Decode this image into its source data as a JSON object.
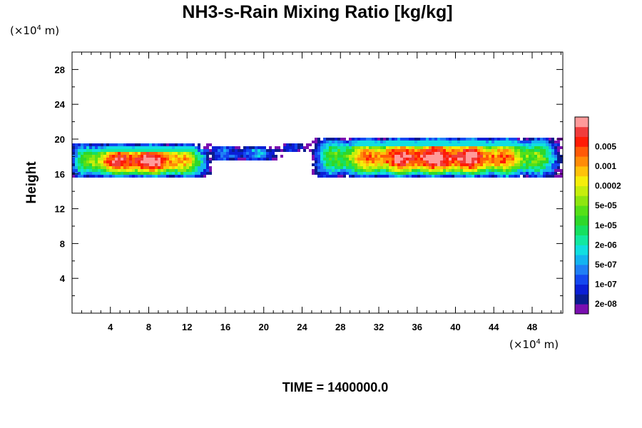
{
  "chart_data": {
    "type": "heatmap",
    "title": "NH3-s-Rain Mixing Ratio [kg/kg]",
    "ylabel": "Height",
    "xlabel": "",
    "x_unit_label": "(×10",
    "x_unit_exp": "4",
    "x_unit_suffix": " m)",
    "y_unit_label": "(×10",
    "y_unit_exp": "4",
    "y_unit_suffix": " m)",
    "time_label": "TIME = 1400000.0",
    "xlim": [
      0,
      51.2
    ],
    "ylim": [
      0,
      30
    ],
    "x_ticks": [
      4,
      8,
      12,
      16,
      20,
      24,
      28,
      32,
      36,
      40,
      44,
      48
    ],
    "x_tick_labels": [
      "4",
      "8",
      "12",
      "16",
      "20",
      "24",
      "28",
      "32",
      "36",
      "40",
      "44",
      "48"
    ],
    "y_ticks": [
      4,
      8,
      12,
      16,
      20,
      24,
      28
    ],
    "y_tick_labels": [
      "4",
      "8",
      "12",
      "16",
      "20",
      "24",
      "28"
    ],
    "colorbar": {
      "colors": [
        "#7a0fb0",
        "#0a1d8f",
        "#0b1fd6",
        "#1448f0",
        "#1f7ff5",
        "#13b4f0",
        "#10dfe0",
        "#12e8a0",
        "#16e060",
        "#2ed82a",
        "#55e018",
        "#8ee60f",
        "#c6ee0c",
        "#f5ee0a",
        "#ffc20a",
        "#ff8c08",
        "#ff5a08",
        "#ff1c06",
        "#f03c3c",
        "#ff9a9a"
      ],
      "labeled_levels": [
        "2e-08",
        "1e-07",
        "5e-07",
        "2e-06",
        "1e-05",
        "5e-05",
        "0.0002",
        "0.001",
        "0.005"
      ]
    },
    "regions": [
      {
        "x0": 0.0,
        "x1": 14.5,
        "y0": 15.5,
        "y1": 19.5,
        "peak": 19
      },
      {
        "x0": 14.5,
        "x1": 22.0,
        "y0": 17.5,
        "y1": 19.2,
        "peak": 4
      },
      {
        "x0": 22.0,
        "x1": 25.0,
        "y0": 18.6,
        "y1": 19.6,
        "peak": 2
      },
      {
        "x0": 25.0,
        "x1": 51.2,
        "y0": 15.5,
        "y1": 20.2,
        "peak": 19
      }
    ]
  }
}
